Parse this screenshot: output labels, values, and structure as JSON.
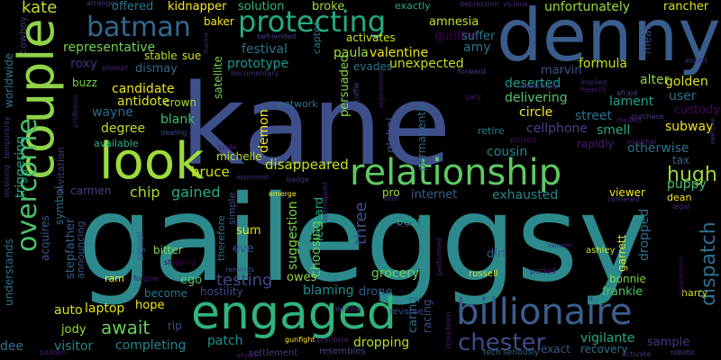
{
  "background": "#000000",
  "words": [
    {
      "text": "kane",
      "color": "#3e4f8a"
    },
    {
      "text": "gaileggsy",
      "color": "#2c8a8c"
    },
    {
      "text": "denny",
      "color": "#3a5d8c"
    },
    {
      "text": "couple",
      "color": "#8fd34a"
    },
    {
      "text": "look",
      "color": "#9ddc3a"
    },
    {
      "text": "engaged",
      "color": "#2fb47c"
    },
    {
      "text": "relationship",
      "color": "#5ec962"
    },
    {
      "text": "billionaire",
      "color": "#3b5e8c"
    },
    {
      "text": "protecting",
      "color": "#25ab81"
    },
    {
      "text": "batman",
      "color": "#31688e"
    },
    {
      "text": "overcome",
      "color": "#4ac16d"
    },
    {
      "text": "chester",
      "color": "#3e4c8a"
    },
    {
      "text": "dispatch",
      "color": "#2e6f8e"
    },
    {
      "text": "hugh",
      "color": "#9bd93c"
    },
    {
      "text": "kate",
      "color": "#bddf26"
    },
    {
      "text": "testing",
      "color": "#3e4989"
    },
    {
      "text": "three",
      "color": "#3c508b"
    },
    {
      "text": "chip",
      "color": "#a8db34"
    },
    {
      "text": "gained",
      "color": "#26ad81"
    },
    {
      "text": "bruce",
      "color": "#d2e21b"
    },
    {
      "text": "disappeared",
      "color": "#c5e021"
    },
    {
      "text": "await",
      "color": "#67cc5c"
    },
    {
      "text": "laptop",
      "color": "#e5e419"
    },
    {
      "text": "dropping",
      "color": "#b5de2b"
    },
    {
      "text": "vigilante",
      "color": "#21a585"
    },
    {
      "text": "completing",
      "color": "#25858e"
    },
    {
      "text": "visitor",
      "color": "#24868e"
    },
    {
      "text": "auto",
      "color": "#d8e219"
    },
    {
      "text": "jody",
      "color": "#95d840"
    },
    {
      "text": "patch",
      "color": "#20928c"
    },
    {
      "text": "owes",
      "color": "#90d743"
    },
    {
      "text": "blaming",
      "color": "#21918c"
    },
    {
      "text": "drone",
      "color": "#375b8d"
    },
    {
      "text": "grocery",
      "color": "#6ccd5a"
    },
    {
      "text": "frankie",
      "color": "#52c569"
    },
    {
      "text": "harry",
      "color": "#d0e11c"
    },
    {
      "text": "sample",
      "color": "#453882"
    },
    {
      "text": "exact",
      "color": "#39568c"
    },
    {
      "text": "recovery",
      "color": "#2e6e8e"
    },
    {
      "text": "candidate",
      "color": "#f1e51d"
    },
    {
      "text": "antidote",
      "color": "#dde318"
    },
    {
      "text": "degree",
      "color": "#c0df25"
    },
    {
      "text": "wayne",
      "color": "#2f6c8e"
    },
    {
      "text": "blank",
      "color": "#3dbc74"
    },
    {
      "text": "crown",
      "color": "#a2da37"
    },
    {
      "text": "carmen",
      "color": "#414287"
    },
    {
      "text": "bitter",
      "color": "#7fd34e"
    },
    {
      "text": "sum",
      "color": "#e2e418"
    },
    {
      "text": "eve",
      "color": "#3d4d8a"
    },
    {
      "text": "ego",
      "color": "#54c568"
    },
    {
      "text": "hope",
      "color": "#f6e620"
    },
    {
      "text": "hostility",
      "color": "#3f4889"
    },
    {
      "text": "become",
      "color": "#29798e"
    },
    {
      "text": "signal",
      "color": "#3a538b"
    },
    {
      "text": "stepfather",
      "color": "#355f8d"
    },
    {
      "text": "acquires",
      "color": "#38598c"
    },
    {
      "text": "symbol",
      "color": "#2e6d8e"
    },
    {
      "text": "understands",
      "color": "#2b758e"
    },
    {
      "text": "worldwide",
      "color": "#29788e"
    },
    {
      "text": "triggering",
      "color": "#22a884"
    },
    {
      "text": "invitation",
      "color": "#453781"
    },
    {
      "text": "announcing",
      "color": "#3b518b"
    },
    {
      "text": "available",
      "color": "#29af7f"
    },
    {
      "text": "representative",
      "color": "#73d056"
    },
    {
      "text": "roxy",
      "color": "#472d7b"
    },
    {
      "text": "dismay",
      "color": "#31678e"
    },
    {
      "text": "buzz",
      "color": "#7ad151"
    },
    {
      "text": "offered",
      "color": "#2a788e"
    },
    {
      "text": "kidnapper",
      "color": "#fde725"
    },
    {
      "text": "solution",
      "color": "#35b779"
    },
    {
      "text": "baker",
      "color": "#f8e621"
    },
    {
      "text": "broke",
      "color": "#9fda3a"
    },
    {
      "text": "festival",
      "color": "#2d718e"
    },
    {
      "text": "prototype",
      "color": "#1f988b"
    },
    {
      "text": "paula",
      "color": "#a0da39"
    },
    {
      "text": "valentine",
      "color": "#eae51a"
    },
    {
      "text": "amy",
      "color": "#2c738e"
    },
    {
      "text": "evades",
      "color": "#2a768e"
    },
    {
      "text": "unexpected",
      "color": "#c2df23"
    },
    {
      "text": "activates",
      "color": "#c8e020"
    },
    {
      "text": "amnesia",
      "color": "#c6e021"
    },
    {
      "text": "gunfire",
      "color": "#440154"
    },
    {
      "text": "suffer",
      "color": "#2a788e"
    },
    {
      "text": "unfortunately",
      "color": "#9dd93b"
    },
    {
      "text": "rancher",
      "color": "#d8e219"
    },
    {
      "text": "alter",
      "color": "#8ed645"
    },
    {
      "text": "golden",
      "color": "#dde318"
    },
    {
      "text": "user",
      "color": "#2d708e"
    },
    {
      "text": "custody",
      "color": "#46085c"
    },
    {
      "text": "formula",
      "color": "#cae11f"
    },
    {
      "text": "meat",
      "color": "#3e4a89"
    },
    {
      "text": "marvin",
      "color": "#3a548c"
    },
    {
      "text": "deserted",
      "color": "#1f9a8a"
    },
    {
      "text": "delivering",
      "color": "#56c667"
    },
    {
      "text": "lament",
      "color": "#20a386"
    },
    {
      "text": "circle",
      "color": "#fde725"
    },
    {
      "text": "street",
      "color": "#2c728e"
    },
    {
      "text": "smell",
      "color": "#22a884"
    },
    {
      "text": "cellphone",
      "color": "#404588"
    },
    {
      "text": "subway",
      "color": "#f1e51d"
    },
    {
      "text": "otherwise",
      "color": "#2d718e"
    },
    {
      "text": "tax",
      "color": "#32658e"
    },
    {
      "text": "puppy",
      "color": "#4ec36b"
    },
    {
      "text": "cousin",
      "color": "#24878e"
    },
    {
      "text": "retire",
      "color": "#26828e"
    },
    {
      "text": "exhausted",
      "color": "#25858e"
    },
    {
      "text": "internet",
      "color": "#33628d"
    },
    {
      "text": "viewer",
      "color": "#f4e61e"
    },
    {
      "text": "dean",
      "color": "#fde725"
    },
    {
      "text": "pro",
      "color": "#a5db36"
    },
    {
      "text": "persuaded",
      "color": "#84d44b"
    },
    {
      "text": "leonard",
      "color": "#22a785"
    },
    {
      "text": "choosing",
      "color": "#67cc5c"
    },
    {
      "text": "suggestion",
      "color": "#7cd250"
    },
    {
      "text": "demon",
      "color": "#f8e621"
    },
    {
      "text": "michelle",
      "color": "#bade28"
    },
    {
      "text": "benny",
      "color": "#1f9e89"
    },
    {
      "text": "dropped",
      "color": "#2d708e"
    },
    {
      "text": "garrett",
      "color": "#d0e11c"
    },
    {
      "text": "bonnie",
      "color": "#7ad151"
    },
    {
      "text": "caring",
      "color": "#2e6f8e"
    },
    {
      "text": "racing",
      "color": "#3d4e8a"
    },
    {
      "text": "dirt",
      "color": "#38598c"
    },
    {
      "text": "global",
      "color": "#3d4d8a"
    },
    {
      "text": "permanently",
      "color": "#30678d"
    },
    {
      "text": "ashley",
      "color": "#d5e21a"
    },
    {
      "text": "russell",
      "color": "#cde11d"
    },
    {
      "text": "rapidly",
      "color": "#481b6d"
    },
    {
      "text": "network",
      "color": "#2c728e"
    },
    {
      "text": "satellite",
      "color": "#75d054"
    },
    {
      "text": "captor",
      "color": "#2b748e"
    },
    {
      "text": "simple",
      "color": "#3b528b"
    },
    {
      "text": "therefore",
      "color": "#2e6e8e"
    },
    {
      "text": "rip",
      "color": "#3b528b"
    },
    {
      "text": "ram",
      "color": "#fde725"
    },
    {
      "text": "dee",
      "color": "#2b758e"
    },
    {
      "text": "stable",
      "color": "#b8de29"
    },
    {
      "text": "sue",
      "color": "#dde318"
    },
    {
      "text": "exactly",
      "color": "#22a884"
    },
    {
      "text": "depression",
      "color": "#472d7b"
    },
    {
      "text": "vicious",
      "color": "#472d7b"
    },
    {
      "text": "cowboy",
      "color": "#46327e"
    },
    {
      "text": "escort",
      "color": "#46327e"
    },
    {
      "text": "poison",
      "color": "#471063"
    },
    {
      "text": "marshal",
      "color": "#482173"
    },
    {
      "text": "exercise",
      "color": "#453781"
    },
    {
      "text": "purchase",
      "color": "#433e85"
    },
    {
      "text": "legal",
      "color": "#472d7b"
    },
    {
      "text": "settlement",
      "color": "#433e85"
    },
    {
      "text": "resembles",
      "color": "#3e4989"
    },
    {
      "text": "seriously",
      "color": "#31678e"
    },
    {
      "text": "tech",
      "color": "#2c728e"
    },
    {
      "text": "activate",
      "color": "#46327e"
    },
    {
      "text": "robotic",
      "color": "#3f4788"
    },
    {
      "text": "gunfight",
      "color": "#fde725"
    },
    {
      "text": "overdose",
      "color": "#482173"
    },
    {
      "text": "reverse",
      "color": "#3e4989"
    },
    {
      "text": "willing",
      "color": "#453781"
    },
    {
      "text": "forgive",
      "color": "#481f70"
    },
    {
      "text": "reminds",
      "color": "#3b528b"
    },
    {
      "text": "emerge",
      "color": "#fde725"
    },
    {
      "text": "gary",
      "color": "#481b6d"
    },
    {
      "text": "scar",
      "color": "#472d7b"
    },
    {
      "text": "bride",
      "color": "#481b6d"
    },
    {
      "text": "dealing",
      "color": "#3e4989"
    },
    {
      "text": "stopping",
      "color": "#440154"
    },
    {
      "text": "befriended",
      "color": "#433e85"
    },
    {
      "text": "arranges",
      "color": "#433e85"
    },
    {
      "text": "prompt",
      "color": "#482475"
    },
    {
      "text": "unwittingly",
      "color": "#46327e"
    },
    {
      "text": "implied",
      "color": "#482878"
    },
    {
      "text": "heavily",
      "color": "#481f70"
    },
    {
      "text": "afraid",
      "color": "#3e4989"
    },
    {
      "text": "invited",
      "color": "#482173"
    },
    {
      "text": "forward",
      "color": "#433e85"
    },
    {
      "text": "marine",
      "color": "#482878"
    },
    {
      "text": "documentary",
      "color": "#472d7b"
    },
    {
      "text": "organization",
      "color": "#482475"
    },
    {
      "text": "cornered",
      "color": "#482878"
    },
    {
      "text": "receiving",
      "color": "#46327e"
    },
    {
      "text": "temporarily",
      "color": "#453781"
    },
    {
      "text": "professor",
      "color": "#482173"
    },
    {
      "text": "badge",
      "color": "#472d7b"
    },
    {
      "text": "appointed",
      "color": "#472d7b"
    },
    {
      "text": "debt",
      "color": "#482878"
    },
    {
      "text": "ransom",
      "color": "#482878"
    },
    {
      "text": "period",
      "color": "#482173"
    },
    {
      "text": "replacement",
      "color": "#471063"
    },
    {
      "text": "balloon",
      "color": "#481f70"
    },
    {
      "text": "anyway",
      "color": "#481b6d"
    },
    {
      "text": "interrogated",
      "color": "#482878"
    },
    {
      "text": "performed",
      "color": "#482475"
    },
    {
      "text": "stockholm",
      "color": "#481b6d"
    },
    {
      "text": "scuffle",
      "color": "#3f4788"
    }
  ]
}
